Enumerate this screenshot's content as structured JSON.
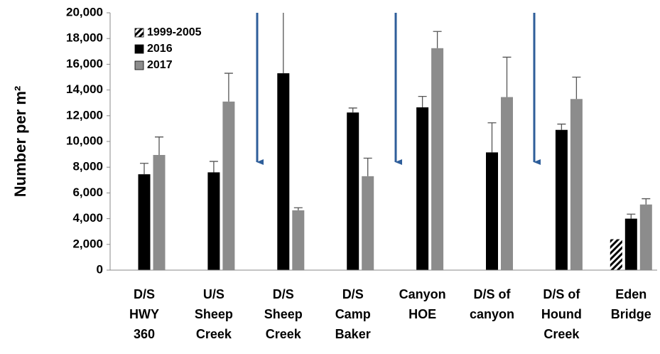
{
  "chart_data": {
    "type": "bar",
    "y_label": "Number per m²",
    "categories": [
      [
        "D/S",
        "HWY",
        "360"
      ],
      [
        "U/S",
        "Sheep",
        "Creek"
      ],
      [
        "D/S",
        "Sheep",
        "Creek"
      ],
      [
        "D/S",
        "Camp",
        "Baker"
      ],
      [
        "Canyon",
        "HOE"
      ],
      [
        "D/S of",
        "canyon"
      ],
      [
        "D/S of",
        "Hound",
        "Creek"
      ],
      [
        "Eden",
        "Bridge"
      ]
    ],
    "series": [
      {
        "name": "1999-2005",
        "color": "#000000",
        "hatch": true,
        "values": [
          null,
          null,
          null,
          null,
          null,
          null,
          null,
          2400
        ],
        "errors": [
          null,
          null,
          null,
          null,
          null,
          null,
          null,
          null
        ]
      },
      {
        "name": "2016",
        "color": "#000000",
        "values": [
          7450,
          7600,
          15300,
          12250,
          12650,
          9150,
          10900,
          4000
        ],
        "errors": [
          850,
          850,
          5000,
          350,
          850,
          2300,
          450,
          350
        ]
      },
      {
        "name": "2017",
        "color": "#8c8c8c",
        "values": [
          8950,
          13100,
          4650,
          7300,
          17250,
          13450,
          13300,
          5100
        ],
        "errors": [
          1400,
          2200,
          200,
          1400,
          1300,
          3100,
          1700,
          450
        ]
      }
    ],
    "ylim": [
      0,
      20000
    ],
    "yticks": [
      0,
      {
        "value": 2000,
        "label": "2,000"
      },
      {
        "value": 4000,
        "label": "4,000"
      },
      {
        "value": 6000,
        "label": "6,000"
      },
      {
        "value": 8000,
        "label": "8,000"
      },
      {
        "value": 10000,
        "label": "10,000"
      },
      {
        "value": 12000,
        "label": "12,000"
      },
      {
        "value": 14000,
        "label": "14,000"
      },
      {
        "value": 16000,
        "label": "16,000"
      },
      {
        "value": 18000,
        "label": "18,000"
      },
      {
        "value": 20000,
        "label": "20,000"
      }
    ],
    "legend": "top-left"
  }
}
